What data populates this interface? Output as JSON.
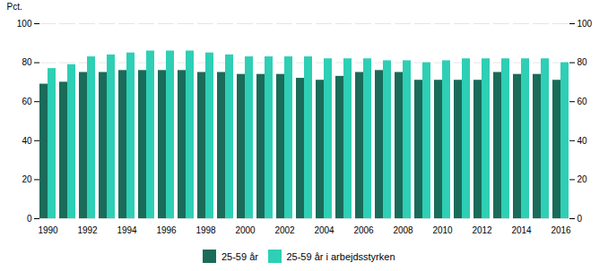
{
  "chart_data": {
    "type": "bar",
    "ylabel": "Pct.",
    "categories": [
      "1990",
      null,
      "1992",
      null,
      "1994",
      null,
      "1996",
      null,
      "1998",
      null,
      "2000",
      null,
      "2002",
      null,
      "2004",
      null,
      "2006",
      null,
      "2008",
      null,
      "2010",
      null,
      "2012",
      null,
      "2014",
      null,
      "2016"
    ],
    "series": [
      {
        "name": "25-59 år",
        "color": "#1a6b5a",
        "values": [
          69,
          70,
          75,
          75,
          76,
          76,
          76,
          76,
          75,
          75,
          74,
          74,
          74,
          72,
          71,
          73,
          75,
          76,
          75,
          71,
          71,
          71,
          71,
          75,
          74,
          74,
          71
        ]
      },
      {
        "name": "25-59 år i arbejdsstyrken",
        "color": "#2ecfb5",
        "values": [
          77,
          79,
          83,
          84,
          85,
          86,
          86,
          86,
          85,
          84,
          83,
          83,
          83,
          83,
          82,
          82,
          82,
          81,
          81,
          80,
          81,
          82,
          82,
          82,
          82,
          82,
          80
        ]
      }
    ],
    "ylim": [
      0,
      100
    ],
    "yticks": [
      0,
      20,
      40,
      60,
      80,
      100
    ],
    "grid": true,
    "legend": "bottom"
  }
}
